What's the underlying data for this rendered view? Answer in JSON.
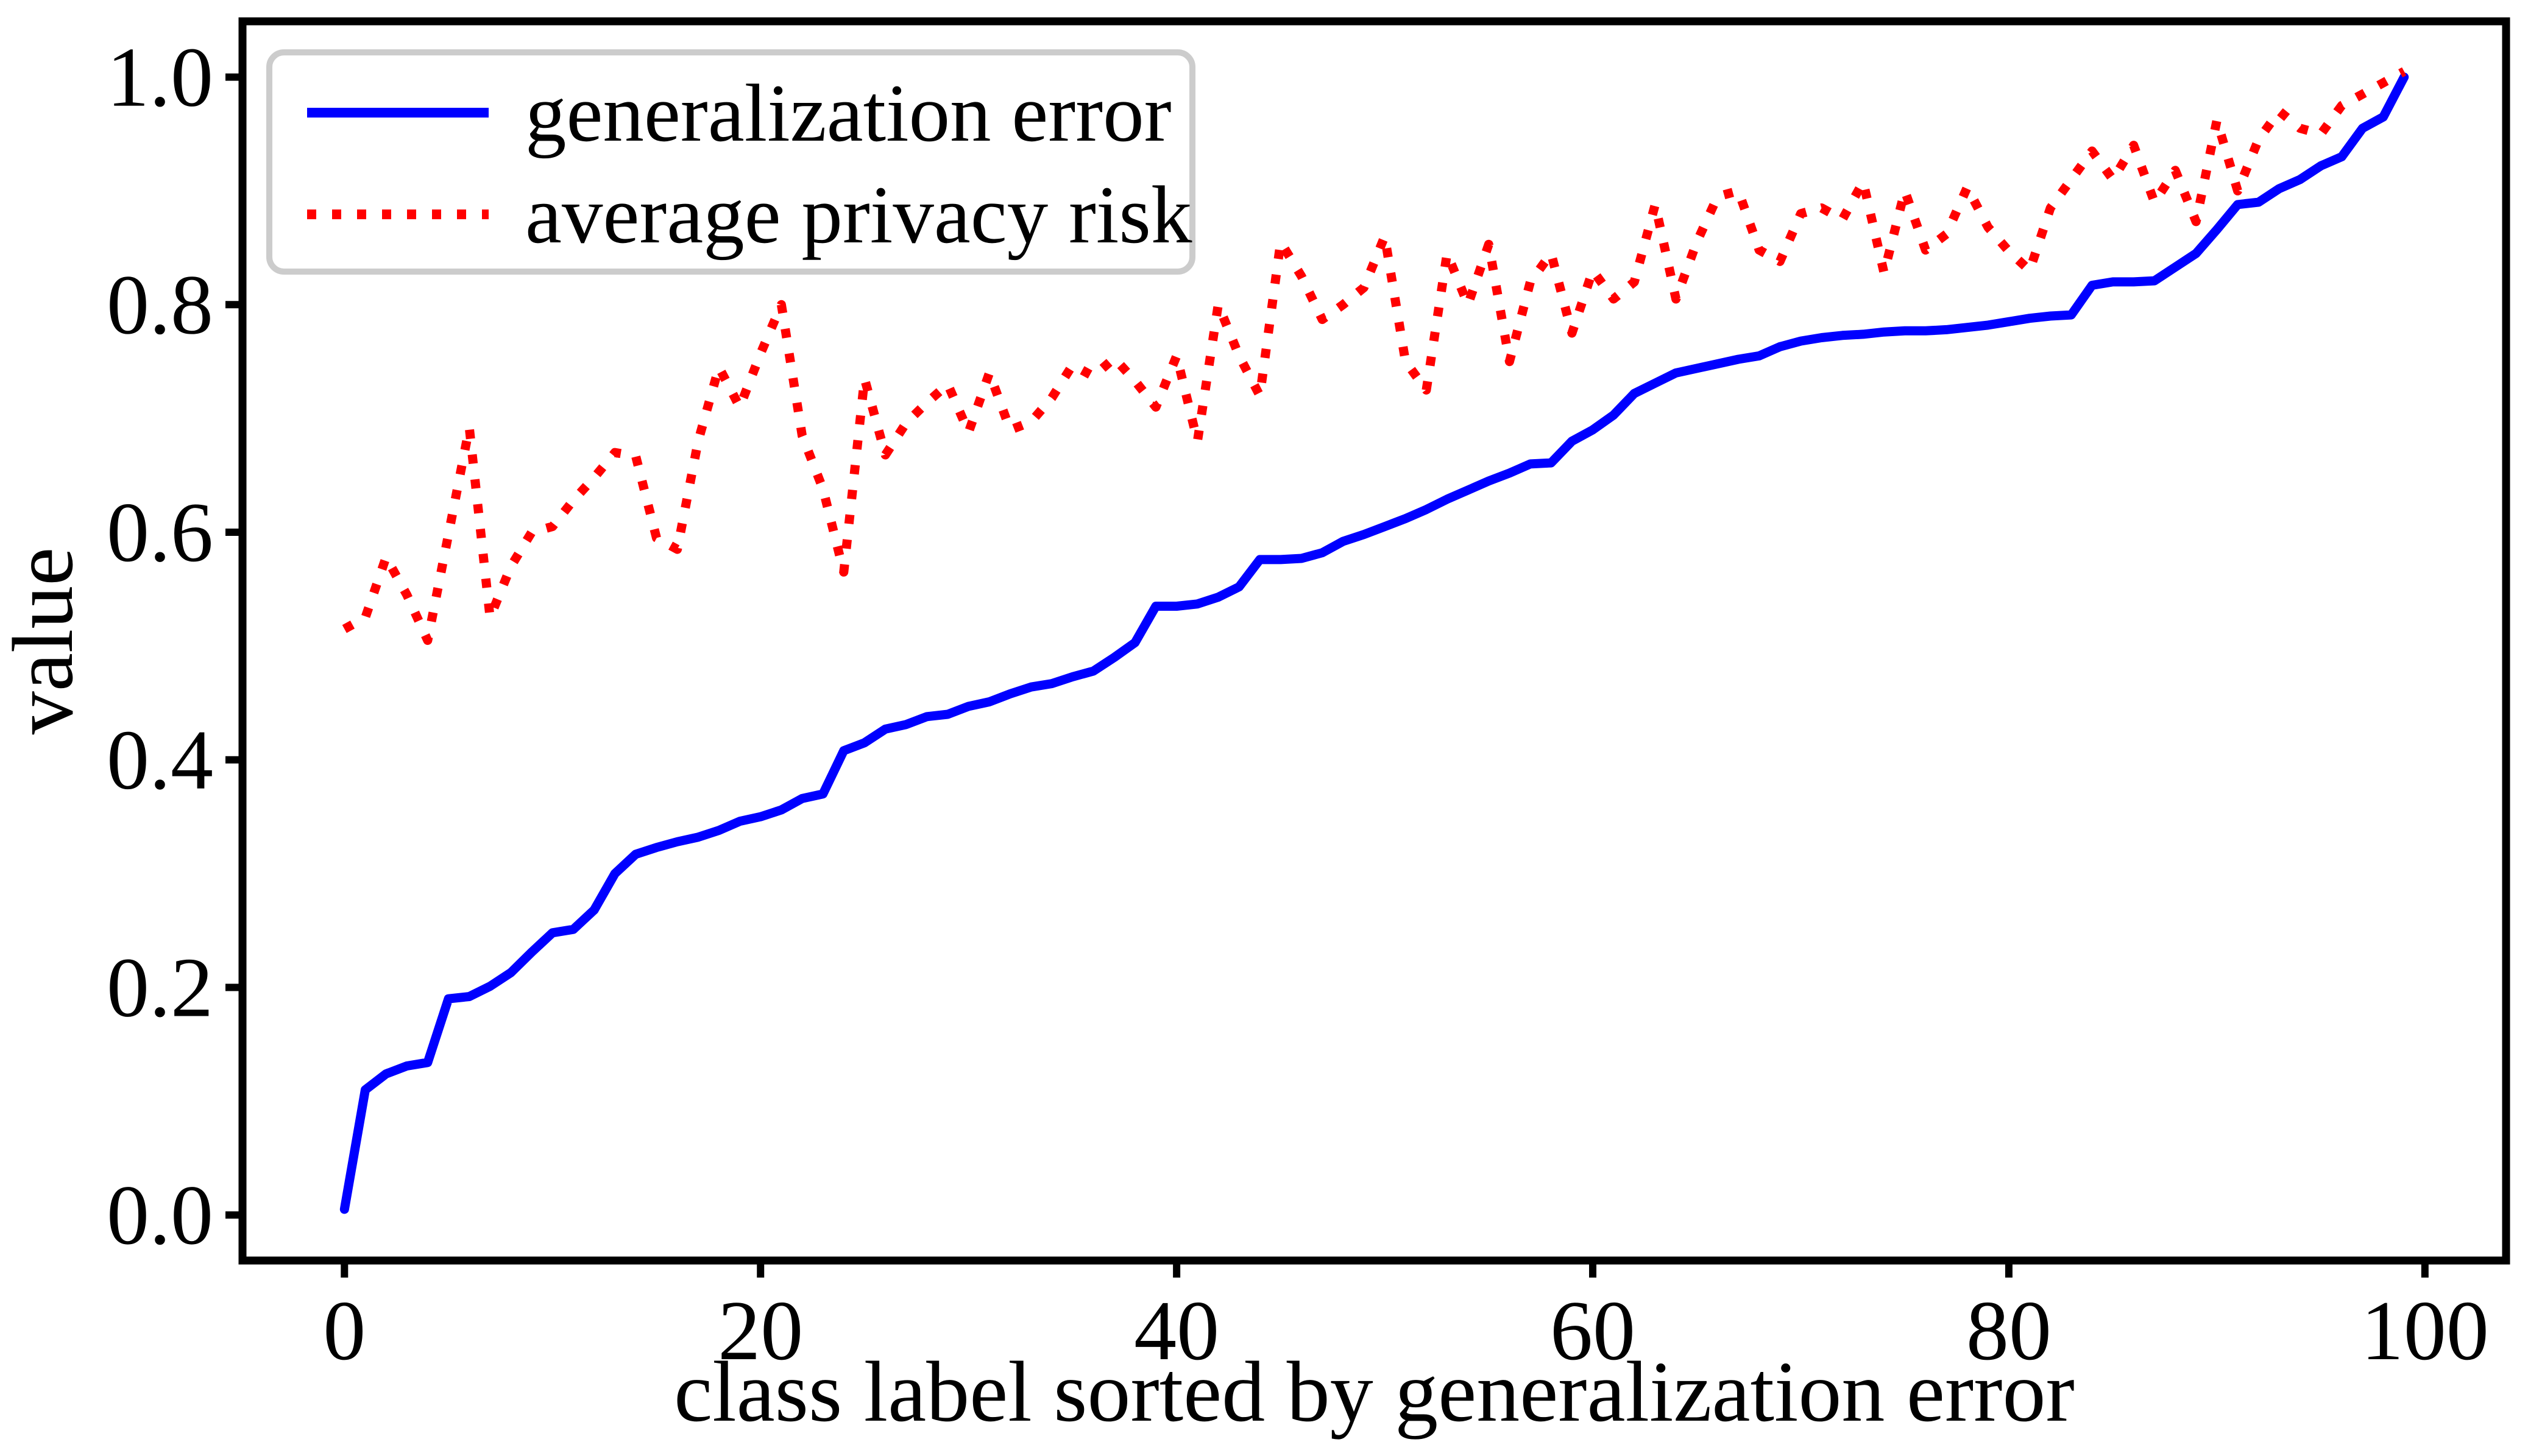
{
  "figure": {
    "title": "",
    "xlabel": "class label sorted by generalization error",
    "ylabel": "value",
    "background_color": "#ffffff",
    "spine_color": "#000000",
    "legend": {
      "position": "upper left",
      "border_color": "#cccccc",
      "items": [
        {
          "label": "generalization error",
          "color": "#0000ff",
          "style": "solid"
        },
        {
          "label": "average privacy risk",
          "color": "#ff0000",
          "style": "dotted"
        }
      ]
    }
  },
  "chart_data": {
    "type": "line",
    "title": "",
    "xlabel": "class label sorted by generalization error",
    "ylabel": "value",
    "grid": false,
    "legend_position": "upper left",
    "xlim": [
      -4.9,
      103.9
    ],
    "ylim": [
      -0.04,
      1.049
    ],
    "xticks": [
      "0",
      "20",
      "40",
      "60",
      "80",
      "100"
    ],
    "xtick_values": [
      0,
      20,
      40,
      60,
      80,
      100
    ],
    "yticks": [
      "0.0",
      "0.2",
      "0.4",
      "0.6",
      "0.8",
      "1.0"
    ],
    "ytick_values": [
      0.0,
      0.2,
      0.4,
      0.6,
      0.8,
      1.0
    ],
    "x_range": [
      0,
      99
    ],
    "series": [
      {
        "name": "generalization error",
        "color": "#0000ff",
        "style": "solid",
        "values": [
          0.005,
          0.11,
          0.124,
          0.131,
          0.134,
          0.19,
          0.192,
          0.201,
          0.213,
          0.231,
          0.248,
          0.251,
          0.268,
          0.3,
          0.317,
          0.323,
          0.328,
          0.332,
          0.338,
          0.346,
          0.35,
          0.356,
          0.366,
          0.37,
          0.408,
          0.415,
          0.427,
          0.431,
          0.438,
          0.44,
          0.447,
          0.451,
          0.458,
          0.464,
          0.467,
          0.473,
          0.478,
          0.49,
          0.503,
          0.535,
          0.535,
          0.537,
          0.543,
          0.552,
          0.576,
          0.576,
          0.577,
          0.582,
          0.592,
          0.598,
          0.605,
          0.612,
          0.62,
          0.629,
          0.637,
          0.645,
          0.652,
          0.66,
          0.661,
          0.68,
          0.69,
          0.703,
          0.722,
          0.731,
          0.74,
          0.744,
          0.748,
          0.752,
          0.755,
          0.763,
          0.768,
          0.771,
          0.773,
          0.774,
          0.776,
          0.777,
          0.777,
          0.778,
          0.78,
          0.782,
          0.785,
          0.788,
          0.79,
          0.791,
          0.817,
          0.82,
          0.82,
          0.821,
          0.833,
          0.845,
          0.866,
          0.888,
          0.89,
          0.902,
          0.91,
          0.922,
          0.93,
          0.955,
          0.965,
          1.0
        ]
      },
      {
        "name": "average privacy risk",
        "color": "#ff0000",
        "style": "dotted",
        "values": [
          0.515,
          0.525,
          0.578,
          0.545,
          0.505,
          0.598,
          0.692,
          0.525,
          0.57,
          0.6,
          0.605,
          0.628,
          0.648,
          0.67,
          0.667,
          0.595,
          0.585,
          0.68,
          0.745,
          0.71,
          0.757,
          0.8,
          0.685,
          0.638,
          0.565,
          0.735,
          0.668,
          0.696,
          0.714,
          0.73,
          0.688,
          0.74,
          0.69,
          0.697,
          0.718,
          0.747,
          0.737,
          0.753,
          0.733,
          0.71,
          0.755,
          0.68,
          0.8,
          0.755,
          0.72,
          0.855,
          0.825,
          0.787,
          0.8,
          0.815,
          0.86,
          0.75,
          0.725,
          0.845,
          0.8,
          0.853,
          0.75,
          0.82,
          0.845,
          0.775,
          0.83,
          0.805,
          0.82,
          0.888,
          0.805,
          0.855,
          0.895,
          0.9,
          0.848,
          0.838,
          0.88,
          0.885,
          0.875,
          0.908,
          0.828,
          0.9,
          0.848,
          0.862,
          0.903,
          0.868,
          0.847,
          0.83,
          0.885,
          0.91,
          0.935,
          0.91,
          0.94,
          0.89,
          0.918,
          0.873,
          0.962,
          0.9,
          0.945,
          0.97,
          0.955,
          0.95,
          0.975,
          0.985,
          0.995,
          1.005
        ]
      }
    ]
  }
}
